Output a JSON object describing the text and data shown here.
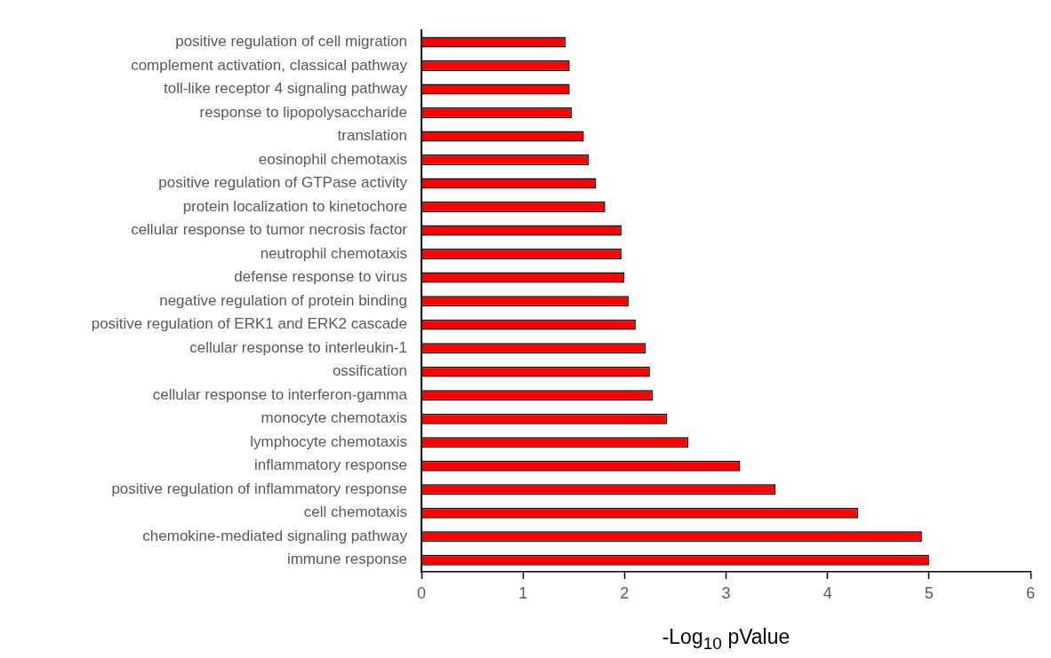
{
  "chart_data": {
    "type": "bar",
    "orientation": "horizontal",
    "xlabel": "-Log$_{10}$ pValue",
    "categories": [
      "positive regulation of cell migration",
      "complement activation, classical pathway",
      "toll-like receptor 4 signaling pathway",
      "response to lipopolysaccharide",
      "translation",
      "eosinophil chemotaxis",
      "positive regulation of GTPase activity",
      "protein localization to kinetochore",
      "cellular response to tumor necrosis factor",
      "neutrophil chemotaxis",
      "defense response to virus",
      "negative regulation of protein binding",
      "positive regulation of ERK1 and ERK2 cascade",
      "cellular response to interleukin-1",
      "ossification",
      "cellular response to interferon-gamma",
      "monocyte chemotaxis",
      "lymphocyte chemotaxis",
      "inflammatory response",
      "positive regulation of inflammatory response",
      "cell chemotaxis",
      "chemokine-mediated signaling pathway",
      "immune response"
    ],
    "values": [
      1.42,
      1.46,
      1.46,
      1.48,
      1.6,
      1.65,
      1.72,
      1.81,
      1.97,
      1.97,
      2.0,
      2.04,
      2.11,
      2.21,
      2.25,
      2.28,
      2.42,
      2.63,
      3.14,
      3.49,
      4.3,
      4.93,
      5.0
    ],
    "color": "#ff0000",
    "xlim": [
      0,
      6
    ],
    "xticks": [
      0,
      1,
      2,
      3,
      4,
      5,
      6
    ],
    "grid": false,
    "legend": false
  }
}
